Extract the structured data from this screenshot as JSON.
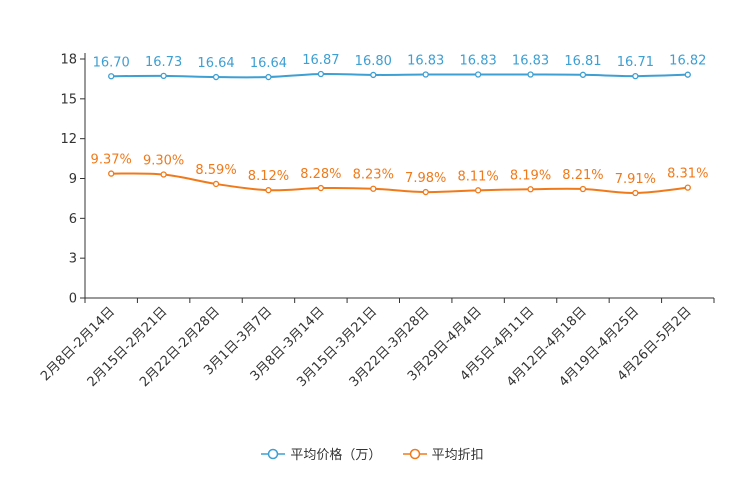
{
  "chart_data": {
    "type": "line",
    "categories": [
      "2月8日-2月14日",
      "2月15日-2月21日",
      "2月22日-2月28日",
      "3月1日-3月7日",
      "3月8日-3月14日",
      "3月15日-3月21日",
      "3月22日-3月28日",
      "3月29日-4月4日",
      "4月5日-4月11日",
      "4月12日-4月18日",
      "4月19日-4月25日",
      "4月26日-5月2日"
    ],
    "yticks": [
      0,
      3,
      6,
      9,
      12,
      15,
      18
    ],
    "ylim": [
      0,
      18
    ],
    "series": [
      {
        "name": "平均价格（万）",
        "color": "#3e9fd2",
        "values": [
          16.7,
          16.73,
          16.64,
          16.64,
          16.87,
          16.8,
          16.83,
          16.83,
          16.83,
          16.81,
          16.71,
          16.82
        ],
        "labels": [
          "16.70",
          "16.73",
          "16.64",
          "16.64",
          "16.87",
          "16.80",
          "16.83",
          "16.83",
          "16.83",
          "16.81",
          "16.71",
          "16.82"
        ]
      },
      {
        "name": "平均折扣",
        "color": "#f07a1b",
        "values": [
          9.37,
          9.3,
          8.59,
          8.12,
          8.28,
          8.23,
          7.98,
          8.11,
          8.19,
          8.21,
          7.91,
          8.31
        ],
        "labels": [
          "9.37%",
          "9.30%",
          "8.59%",
          "8.12%",
          "8.28%",
          "8.23%",
          "7.98%",
          "8.11%",
          "8.19%",
          "8.21%",
          "7.91%",
          "8.31%"
        ]
      }
    ]
  }
}
